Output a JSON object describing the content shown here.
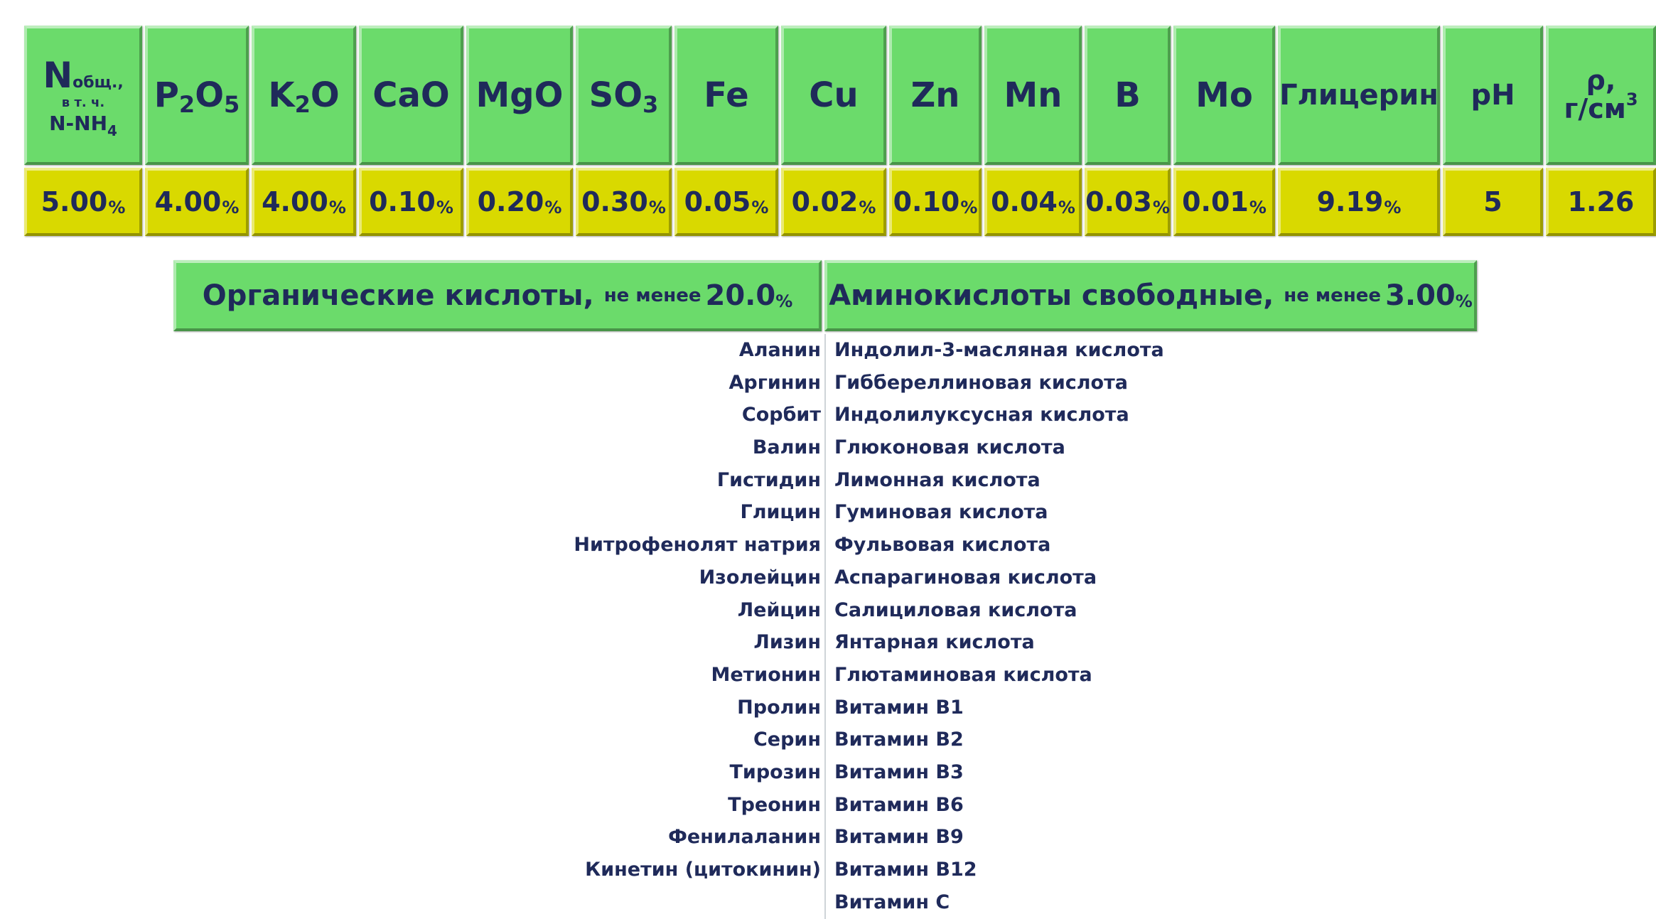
{
  "header_row": {
    "n_total_main": "N",
    "n_total_sub": "общ.,",
    "n_total_note": "в т. ч.",
    "n_nh4_main": "N-NH",
    "n_nh4_sub": "4",
    "p2o5": {
      "a": "P",
      "s1": "2",
      "b": "O",
      "s2": "5"
    },
    "k2o": {
      "a": "K",
      "s1": "2",
      "b": "O"
    },
    "cao": "CaO",
    "mgo": "MgO",
    "so3": {
      "a": "SO",
      "s1": "3"
    },
    "fe": "Fe",
    "cu": "Cu",
    "zn": "Zn",
    "mn": "Mn",
    "b": "B",
    "mo": "Mo",
    "glycerin": "Глицерин",
    "ph": "pH",
    "rho_symbol": "ρ,",
    "rho_unit": "г/см",
    "rho_unit_sup": "3"
  },
  "value_row": {
    "n_total": "5.00",
    "p2o5": "4.00",
    "k2o": "4.00",
    "cao": "0.10",
    "mgo": "0.20",
    "so3": "0.30",
    "fe": "0.05",
    "cu": "0.02",
    "zn": "0.10",
    "mn": "0.04",
    "b": "0.03",
    "mo": "0.01",
    "glycerin": "9.19",
    "ph": "5",
    "rho": "1.26",
    "percent_sign": "%"
  },
  "organic_acids": {
    "title": "Органические кислоты,",
    "note": "не менее",
    "value": "20.0",
    "percent_sign": "%"
  },
  "amino_acids": {
    "title": "Аминокислоты свободные,",
    "note": "не менее",
    "value": "3.00",
    "percent_sign": "%"
  },
  "left_items": [
    "Аланин",
    "Аргинин",
    "Сорбит",
    "Валин",
    "Гистидин",
    "Глицин",
    "Нитрофенолят натрия",
    "Изолейцин",
    "Лейцин",
    "Лизин",
    "Метионин",
    "Пролин",
    "Серин",
    "Тирозин",
    "Треонин",
    "Фенилаланин",
    "Кинетин (цитокинин)"
  ],
  "right_items": [
    "Индолил-3-масляная кислота",
    "Гиббереллиновая кислота",
    "Индолилуксусная кислота",
    "Глюконовая кислота",
    "Лимонная кислота",
    "Гуминовая кислота",
    "Фульвовая кислота",
    "Аспарагиновая кислота",
    "Салициловая кислота",
    "Янтарная кислота",
    "Глютаминовая кислота",
    "Витамин B1",
    "Витамин B2",
    "Витамин B3",
    "Витамин B6",
    "Витамин B9",
    "Витамин B12",
    "Витамин C"
  ],
  "colors": {
    "header_green": "#6bdb6b",
    "value_yellow": "#d9d900",
    "text_navy": "#1f2a5a"
  }
}
